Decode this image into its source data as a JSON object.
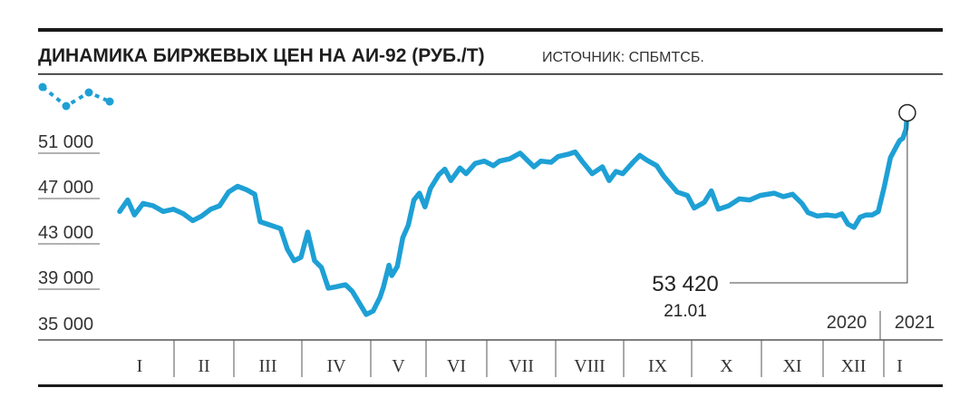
{
  "header": {
    "title": "ДИНАМИКА БИРЖЕВЫХ ЦЕН НА АИ-92 (РУБ./Т)",
    "source": "ИСТОЧНИК: СПБМТСБ."
  },
  "legend_icon": "line-chart-icon",
  "colors": {
    "line": "#1ea0d5",
    "rule": "#1a1a1a",
    "axis": "#555555"
  },
  "chart_data": {
    "type": "line",
    "title": "ДИНАМИКА БИРЖЕВЫХ ЦЕН НА АИ-92 (РУБ./Т)",
    "y_ticks": [
      "51 000",
      "47 000",
      "43 000",
      "39 000",
      "35 000"
    ],
    "y_tick_values": [
      51000,
      47000,
      43000,
      39000,
      35000
    ],
    "ylim": [
      34800,
      53800
    ],
    "months": [
      "I",
      "II",
      "III",
      "IV",
      "V",
      "VI",
      "VII",
      "VIII",
      "IX",
      "X",
      "XI",
      "XII",
      "I"
    ],
    "years": [
      "2020",
      "2021"
    ],
    "grid": false,
    "series": [
      {
        "values": [
          [
            0.0,
            44800
          ],
          [
            0.12,
            45800
          ],
          [
            0.22,
            44500
          ],
          [
            0.35,
            45500
          ],
          [
            0.5,
            45300
          ],
          [
            0.65,
            44800
          ],
          [
            0.8,
            45000
          ],
          [
            0.95,
            44600
          ],
          [
            1.1,
            44000
          ],
          [
            1.25,
            44400
          ],
          [
            1.4,
            45000
          ],
          [
            1.55,
            45300
          ],
          [
            1.7,
            46500
          ],
          [
            1.85,
            47000
          ],
          [
            2.0,
            46700
          ],
          [
            2.12,
            46300
          ],
          [
            2.2,
            43900
          ],
          [
            2.35,
            43600
          ],
          [
            2.5,
            43300
          ],
          [
            2.6,
            41500
          ],
          [
            2.7,
            40500
          ],
          [
            2.8,
            40800
          ],
          [
            2.9,
            43000
          ],
          [
            3.0,
            40500
          ],
          [
            3.1,
            39900
          ],
          [
            3.2,
            38100
          ],
          [
            3.3,
            38200
          ],
          [
            3.45,
            38400
          ],
          [
            3.55,
            37800
          ],
          [
            3.65,
            36800
          ],
          [
            3.75,
            35800
          ],
          [
            3.85,
            36100
          ],
          [
            3.95,
            37300
          ],
          [
            4.0,
            38200
          ],
          [
            4.1,
            40100
          ],
          [
            4.15,
            39200
          ],
          [
            4.25,
            40000
          ],
          [
            4.35,
            42500
          ],
          [
            4.45,
            43600
          ],
          [
            4.55,
            45800
          ],
          [
            4.65,
            46400
          ],
          [
            4.75,
            45200
          ],
          [
            4.85,
            46800
          ],
          [
            5.0,
            48000
          ],
          [
            5.1,
            48500
          ],
          [
            5.2,
            47500
          ],
          [
            5.35,
            48600
          ],
          [
            5.45,
            48100
          ],
          [
            5.6,
            49000
          ],
          [
            5.75,
            49200
          ],
          [
            5.9,
            48800
          ],
          [
            6.0,
            49200
          ],
          [
            6.15,
            49400
          ],
          [
            6.3,
            49900
          ],
          [
            6.4,
            49300
          ],
          [
            6.5,
            48700
          ],
          [
            6.6,
            49200
          ],
          [
            6.75,
            49100
          ],
          [
            6.85,
            49600
          ],
          [
            7.0,
            49800
          ],
          [
            7.1,
            50000
          ],
          [
            7.2,
            49200
          ],
          [
            7.35,
            48100
          ],
          [
            7.5,
            48700
          ],
          [
            7.6,
            47500
          ],
          [
            7.7,
            48300
          ],
          [
            7.8,
            48100
          ],
          [
            7.95,
            49100
          ],
          [
            8.05,
            49700
          ],
          [
            8.15,
            49300
          ],
          [
            8.3,
            48800
          ],
          [
            8.4,
            47900
          ],
          [
            8.5,
            47200
          ],
          [
            8.6,
            46500
          ],
          [
            8.75,
            46200
          ],
          [
            8.85,
            45100
          ],
          [
            9.0,
            45600
          ],
          [
            9.1,
            46600
          ],
          [
            9.2,
            45000
          ],
          [
            9.35,
            45300
          ],
          [
            9.5,
            45900
          ],
          [
            9.65,
            45800
          ],
          [
            9.8,
            46200
          ],
          [
            10.0,
            46400
          ],
          [
            10.15,
            46100
          ],
          [
            10.3,
            46300
          ],
          [
            10.45,
            45500
          ],
          [
            10.55,
            44700
          ],
          [
            10.7,
            44400
          ],
          [
            10.85,
            44500
          ],
          [
            11.0,
            44400
          ],
          [
            11.1,
            44600
          ],
          [
            11.2,
            43700
          ],
          [
            11.3,
            43400
          ],
          [
            11.4,
            44300
          ],
          [
            11.5,
            44500
          ],
          [
            11.6,
            44500
          ],
          [
            11.7,
            44800
          ],
          [
            11.8,
            47000
          ],
          [
            11.9,
            49500
          ],
          [
            12.0,
            50500
          ],
          [
            12.1,
            51000
          ],
          [
            12.2,
            51200
          ],
          [
            12.3,
            52000
          ],
          [
            12.34,
            53420
          ]
        ]
      }
    ],
    "callout": {
      "value": "53 420",
      "date": "21.01",
      "x": 12.34,
      "y": 53420
    }
  }
}
